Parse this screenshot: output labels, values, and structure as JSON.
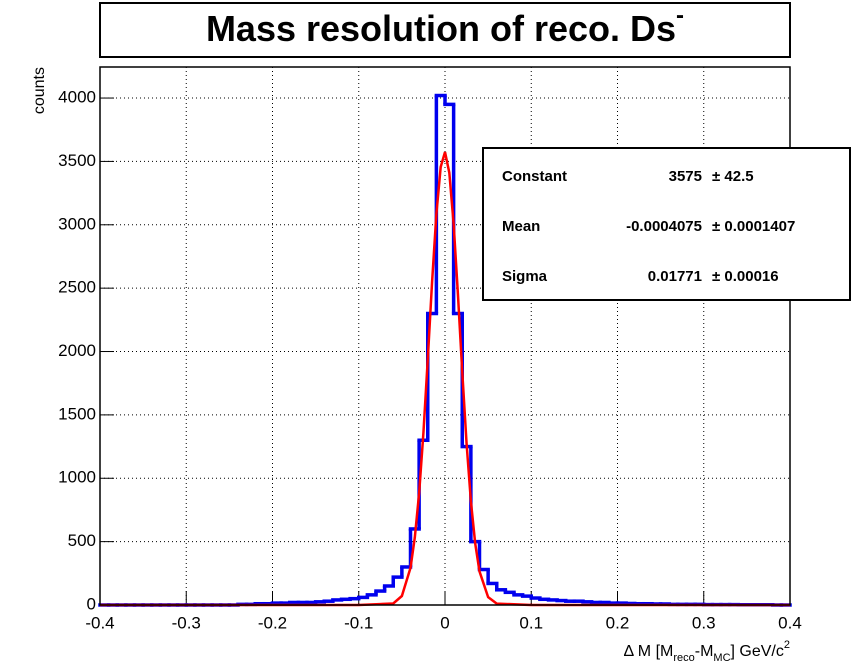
{
  "chart_data": {
    "type": "histogram",
    "title": {
      "main": "Mass resolution of reco. Ds",
      "sup": "-"
    },
    "y_label": "counts",
    "x_label": {
      "a": "Δ M [M",
      "sub1": "reco",
      "b": "-M",
      "sub2": "MC",
      "c": "] GeV/c",
      "sup": "2"
    },
    "bins": [
      -0.4,
      -0.39,
      -0.38,
      -0.37,
      -0.36,
      -0.35,
      -0.34,
      -0.33,
      -0.32,
      -0.31,
      -0.3,
      -0.29,
      -0.28,
      -0.27,
      -0.26,
      -0.25,
      -0.24,
      -0.23,
      -0.22,
      -0.21,
      -0.2,
      -0.19,
      -0.18,
      -0.17,
      -0.16,
      -0.15,
      -0.14,
      -0.13,
      -0.12,
      -0.11,
      -0.1,
      -0.09,
      -0.08,
      -0.07,
      -0.06,
      -0.05,
      -0.04,
      -0.03,
      -0.02,
      -0.01,
      0,
      0.01,
      0.02,
      0.03,
      0.04,
      0.05,
      0.06,
      0.07,
      0.08,
      0.09,
      0.1,
      0.11,
      0.12,
      0.13,
      0.14,
      0.15,
      0.16,
      0.17,
      0.18,
      0.19,
      0.2,
      0.21,
      0.22,
      0.23,
      0.24,
      0.25,
      0.26,
      0.27,
      0.28,
      0.29,
      0.3,
      0.31,
      0.32,
      0.33,
      0.34,
      0.35,
      0.36,
      0.37,
      0.38,
      0.39,
      0.4
    ],
    "counts": [
      0,
      0,
      0,
      0,
      0,
      0,
      0,
      0,
      0,
      0,
      0,
      0,
      0,
      0,
      0,
      0,
      5,
      5,
      10,
      10,
      15,
      15,
      20,
      20,
      20,
      25,
      30,
      40,
      45,
      50,
      60,
      80,
      110,
      150,
      220,
      300,
      600,
      1300,
      2300,
      4020,
      3950,
      2300,
      1250,
      500,
      280,
      170,
      120,
      100,
      80,
      70,
      55,
      45,
      40,
      35,
      30,
      30,
      25,
      20,
      20,
      15,
      15,
      12,
      10,
      10,
      8,
      8,
      5,
      5,
      5,
      5,
      3,
      3,
      3,
      3,
      2,
      2,
      2,
      2,
      0,
      0
    ],
    "color": "#0000ee",
    "fit": {
      "color": "#ff0000",
      "x": [
        -0.4,
        -0.1,
        -0.06,
        -0.05,
        -0.04,
        -0.035,
        -0.03,
        -0.025,
        -0.02,
        -0.015,
        -0.01,
        -0.005,
        0,
        0.005,
        0.01,
        0.015,
        0.02,
        0.025,
        0.03,
        0.035,
        0.04,
        0.05,
        0.06,
        0.1,
        0.4
      ],
      "values": [
        0,
        0,
        12,
        71,
        293,
        533,
        882,
        1361,
        1937,
        2546,
        3086,
        3456,
        3574,
        3411,
        3009,
        2450,
        1840,
        1276,
        819,
        487,
        265,
        62,
        11,
        0,
        0
      ]
    },
    "stats": [
      {
        "name": "Constant",
        "value": "3575",
        "error": "± 42.5"
      },
      {
        "name": "Mean",
        "value": "-0.0004075",
        "error": "± 0.0001407"
      },
      {
        "name": "Sigma",
        "value": "0.01771",
        "error": "± 0.00016"
      }
    ],
    "xlim": [
      -0.4,
      0.4
    ],
    "ylim": [
      0,
      4245
    ],
    "xticks": [
      -0.4,
      -0.3,
      -0.2,
      -0.1,
      0,
      0.1,
      0.2,
      0.3,
      0.4
    ],
    "yticks": [
      0,
      500,
      1000,
      1500,
      2000,
      2500,
      3000,
      3500,
      4000
    ],
    "grid": true
  }
}
